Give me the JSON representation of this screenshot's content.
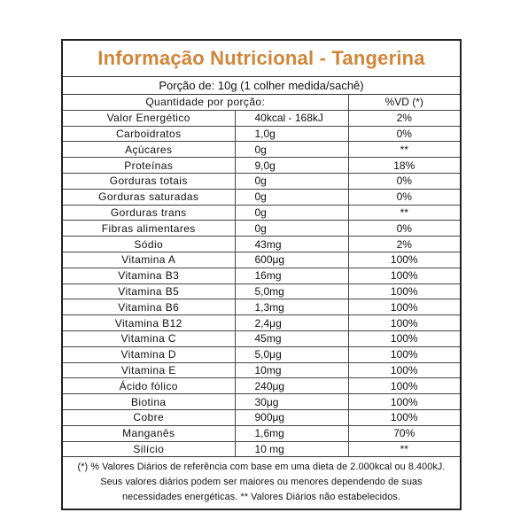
{
  "title": "Informação Nutricional - Tangerina",
  "portion": "Porção de: 10g (1 colher medida/sachê)",
  "header": {
    "quantity": "Quantidade por porção:",
    "vd": "%VD (*)"
  },
  "rows": [
    {
      "name": "Valor Energético",
      "qty": "40kcal - 168kJ",
      "vd": "2%"
    },
    {
      "name": "Carboidratos",
      "qty": "1,0g",
      "vd": "0%"
    },
    {
      "name": "Açúcares",
      "qty": "0g",
      "vd": "**"
    },
    {
      "name": "Proteínas",
      "qty": "9,0g",
      "vd": "18%"
    },
    {
      "name": "Gorduras totais",
      "qty": "0g",
      "vd": "0%"
    },
    {
      "name": "Gorduras saturadas",
      "qty": "0g",
      "vd": "0%"
    },
    {
      "name": "Gorduras trans",
      "qty": "0g",
      "vd": "**"
    },
    {
      "name": "Fibras alimentares",
      "qty": "0g",
      "vd": "0%"
    },
    {
      "name": "Sódio",
      "qty": "43mg",
      "vd": "2%"
    },
    {
      "name": "Vitamina A",
      "qty": "600μg",
      "vd": "100%"
    },
    {
      "name": "Vitamina B3",
      "qty": "16mg",
      "vd": "100%"
    },
    {
      "name": "Vitamina B5",
      "qty": "5,0mg",
      "vd": "100%"
    },
    {
      "name": "Vitamina B6",
      "qty": "1,3mg",
      "vd": "100%"
    },
    {
      "name": "Vitamina B12",
      "qty": "2,4μg",
      "vd": "100%"
    },
    {
      "name": "Vitamina C",
      "qty": "45mg",
      "vd": "100%"
    },
    {
      "name": "Vitamina D",
      "qty": "5,0μg",
      "vd": "100%"
    },
    {
      "name": "Vitamina E",
      "qty": "10mg",
      "vd": "100%"
    },
    {
      "name": "Ácido fólico",
      "qty": "240μg",
      "vd": "100%"
    },
    {
      "name": "Biotina",
      "qty": "30μg",
      "vd": "100%"
    },
    {
      "name": "Cobre",
      "qty": "900μg",
      "vd": "100%"
    },
    {
      "name": "Manganês",
      "qty": "1,6mg",
      "vd": "70%"
    },
    {
      "name": "Silício",
      "qty": "10 mg",
      "vd": "**"
    }
  ],
  "footnote": {
    "line1": "(*) % Valores Diários de referência com base em uma dieta de 2.000kcal ou 8.400kJ.",
    "line2": "Seus valores diários podem ser maiores ou menores dependendo de suas",
    "line3": "necessidades energéticas. ** Valores Diários não estabelecidos."
  },
  "colors": {
    "title": "#d1853a",
    "border": "#222222"
  }
}
